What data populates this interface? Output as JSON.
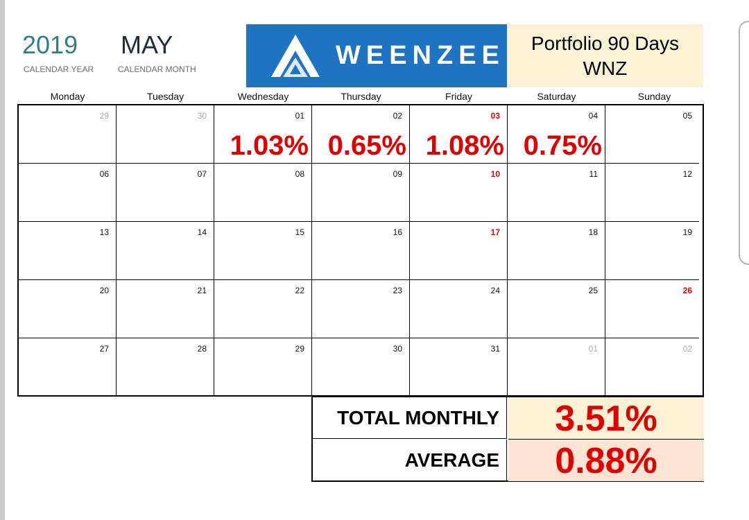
{
  "header": {
    "year": "2019",
    "year_caption": "CALENDAR YEAR",
    "month": "MAY",
    "month_caption": "CALENDAR MONTH",
    "logo_text": "WEENZEE",
    "portfolio_line1": "Portfolio 90 Days",
    "portfolio_line2": "WNZ"
  },
  "weekdays": [
    "Monday",
    "Tuesday",
    "Wednesday",
    "Thursday",
    "Friday",
    "Saturday",
    "Sunday"
  ],
  "weeks": [
    [
      {
        "day": "29",
        "style": "muted"
      },
      {
        "day": "30",
        "style": "muted"
      },
      {
        "day": "01",
        "pct": "1.03%"
      },
      {
        "day": "02",
        "pct": "0.65%"
      },
      {
        "day": "03",
        "style": "red",
        "pct": "1.08%"
      },
      {
        "day": "04",
        "pct": "0.75%"
      },
      {
        "day": "05"
      }
    ],
    [
      {
        "day": "06"
      },
      {
        "day": "07"
      },
      {
        "day": "08"
      },
      {
        "day": "09"
      },
      {
        "day": "10",
        "style": "red"
      },
      {
        "day": "11"
      },
      {
        "day": "12"
      }
    ],
    [
      {
        "day": "13"
      },
      {
        "day": "14"
      },
      {
        "day": "15"
      },
      {
        "day": "16"
      },
      {
        "day": "17",
        "style": "red"
      },
      {
        "day": "18"
      },
      {
        "day": "19"
      }
    ],
    [
      {
        "day": "20"
      },
      {
        "day": "21"
      },
      {
        "day": "22"
      },
      {
        "day": "23"
      },
      {
        "day": "24"
      },
      {
        "day": "25"
      },
      {
        "day": "26",
        "style": "red"
      }
    ],
    [
      {
        "day": "27"
      },
      {
        "day": "28"
      },
      {
        "day": "29"
      },
      {
        "day": "30"
      },
      {
        "day": "31"
      },
      {
        "day": "01",
        "style": "muted"
      },
      {
        "day": "02",
        "style": "muted"
      }
    ]
  ],
  "summary": {
    "total_label": "TOTAL MONTHLY",
    "total_value": "3.51%",
    "average_label": "AVERAGE",
    "average_value": "0.88%"
  },
  "colors": {
    "logo_bg": "#1f74c1",
    "portfolio_bg": "#fbf2d6",
    "total_bg": "#fbf2d6",
    "average_bg": "#fde5d6",
    "accent_red": "#e00000",
    "year_teal": "#2e7d89"
  }
}
